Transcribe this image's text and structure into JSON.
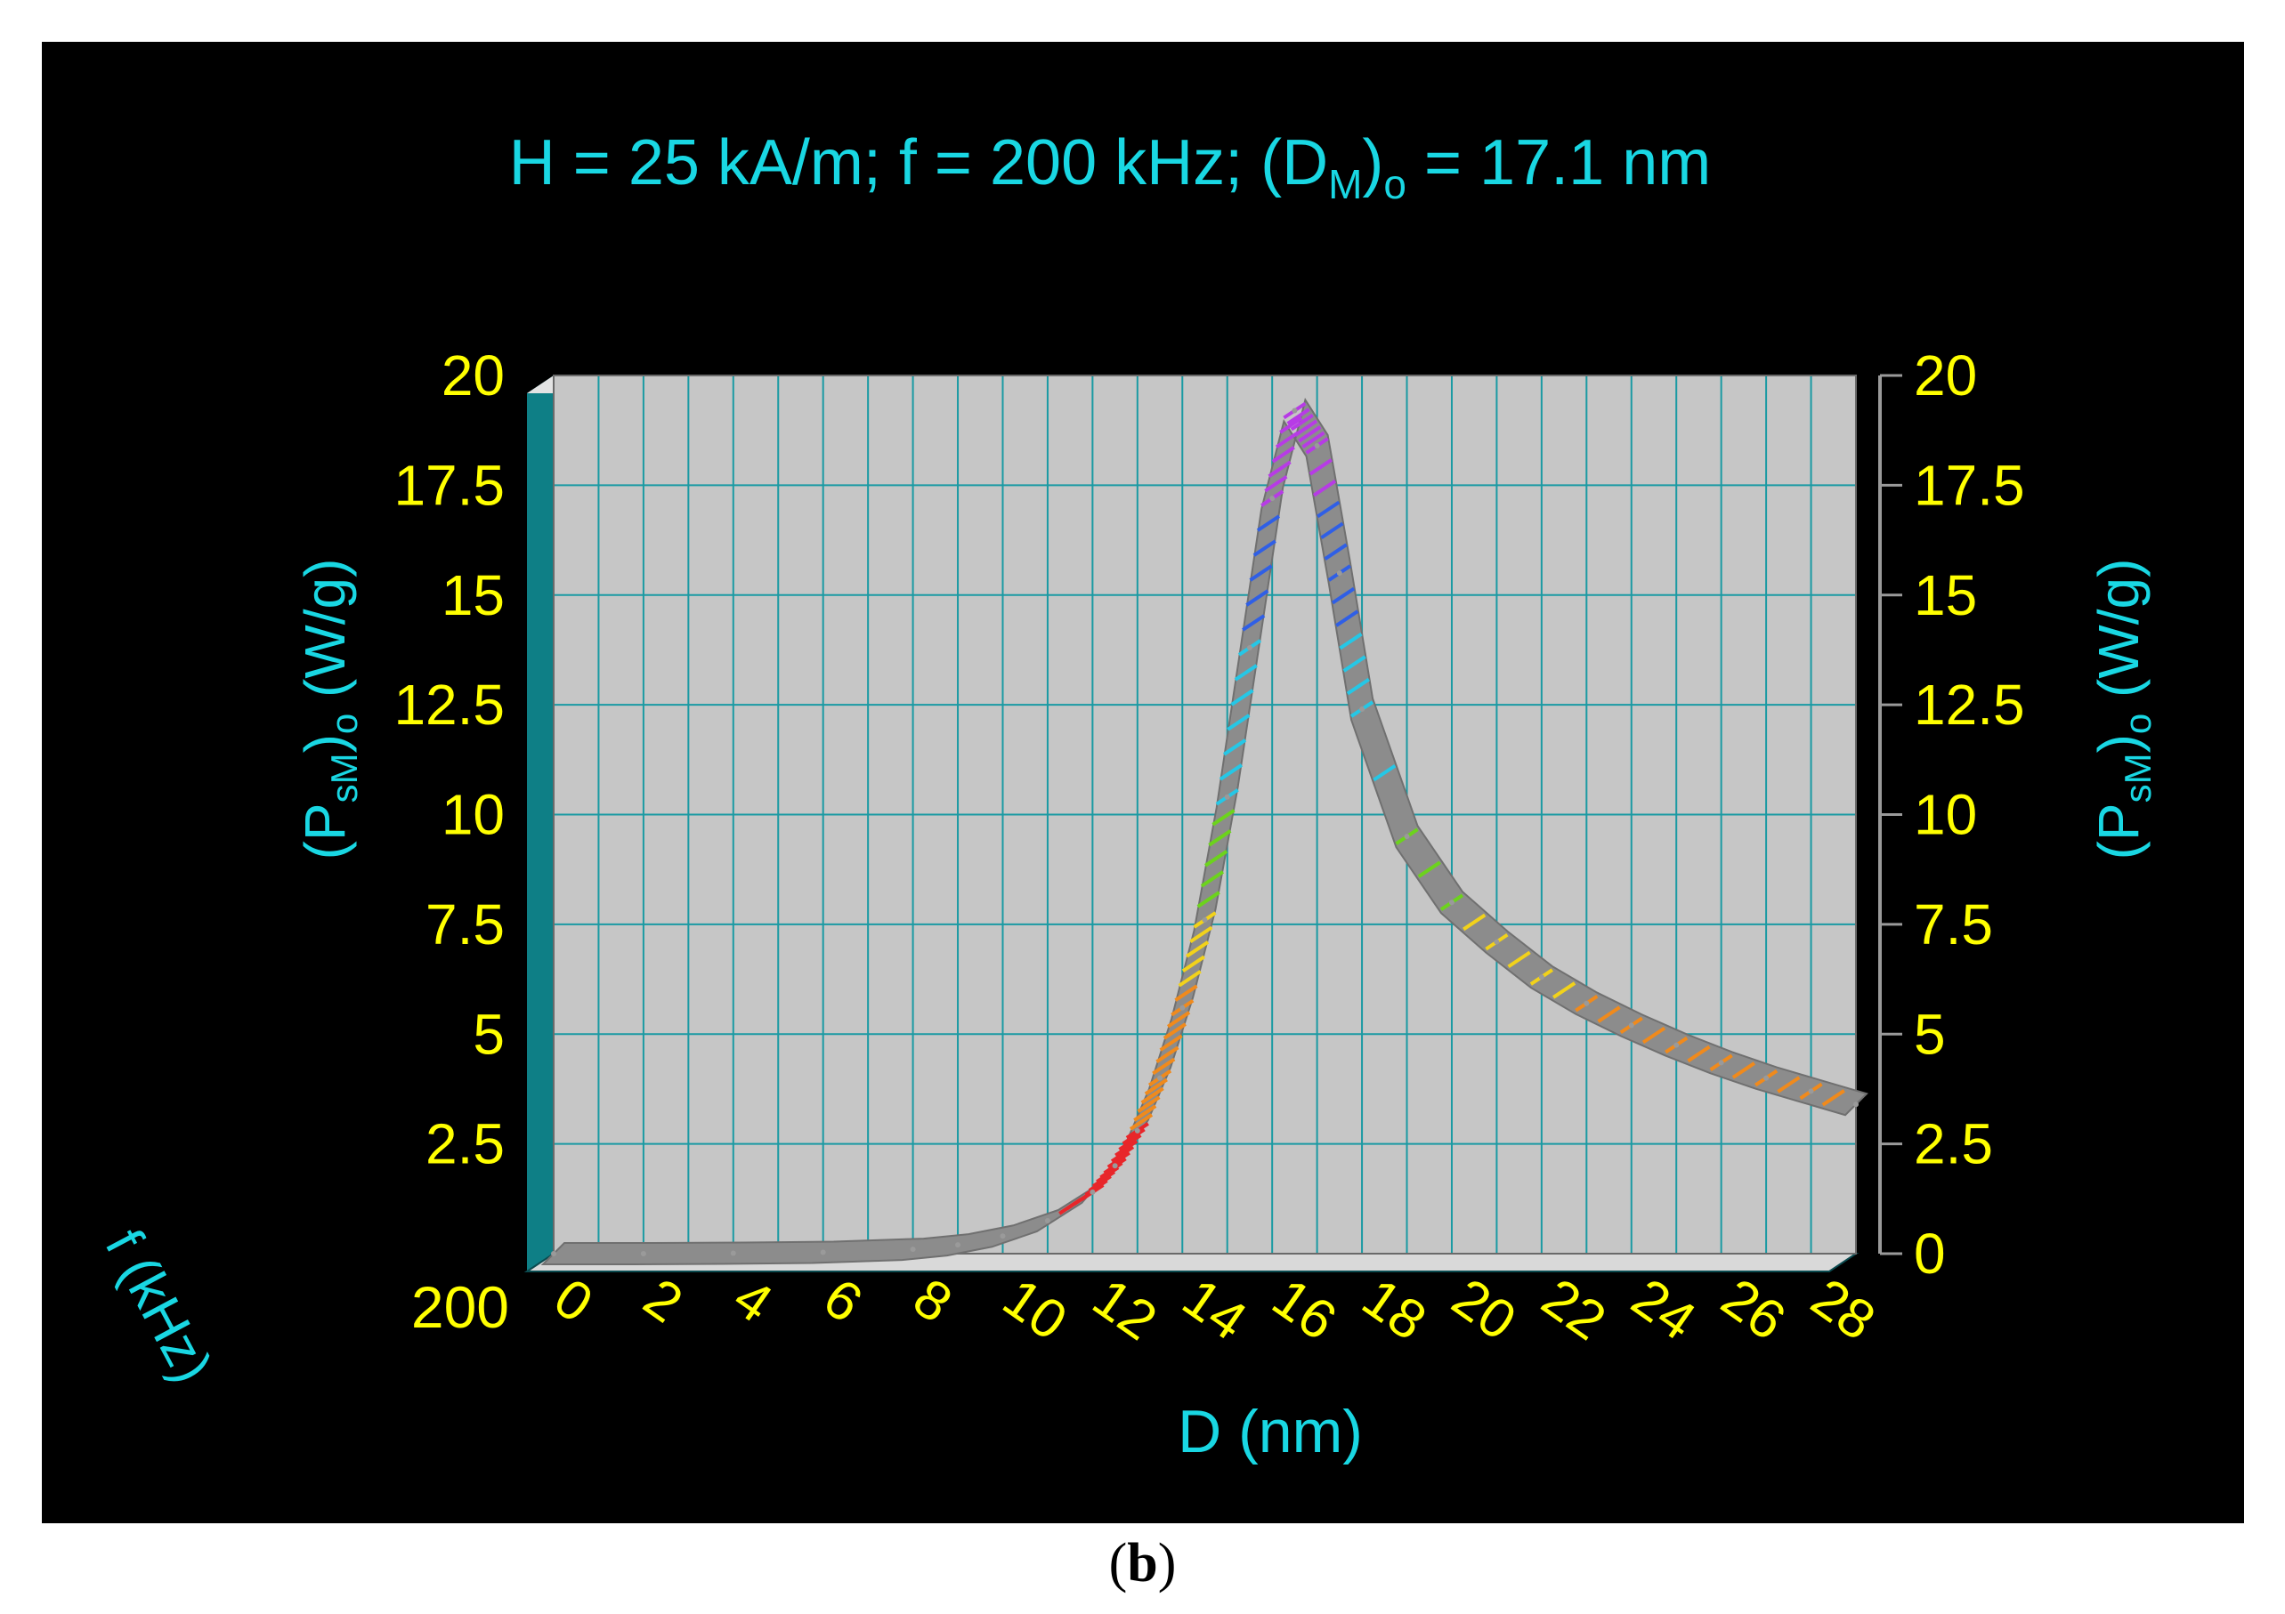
{
  "caption": {
    "open": "(",
    "letter": "b",
    "close": ")"
  },
  "colors": {
    "text_cyan": "#19d7e3",
    "tick_yellow": "#ffff00",
    "panel": "#000000",
    "plot_bg": "#c6c6c6",
    "grid": "#1a9aa3",
    "curve": "#8c8c8c"
  },
  "chart_data": {
    "type": "area",
    "title": {
      "pre": "H = 25 kA/m;  f = 200 kHz;  (D",
      "sub": "M",
      "mid": ")",
      "sub2": "o",
      "post": " = 17.1 nm"
    },
    "xlabel": "D (nm)",
    "ylabel": {
      "pre": "(P",
      "sub": "sM",
      "mid": ")",
      "sub2": "o",
      "post": " (W/g)"
    },
    "zlabel": "f (kHz)",
    "z_tick": "200",
    "xlim": [
      0,
      29
    ],
    "ylim": [
      0,
      20
    ],
    "x_ticks": [
      "0",
      "2",
      "4",
      "6",
      "8",
      "10",
      "12",
      "14",
      "16",
      "18",
      "20",
      "22",
      "24",
      "26",
      "28"
    ],
    "y_ticks_left": [
      "20",
      "17.5",
      "15",
      "12.5",
      "10",
      "7.5",
      "5",
      "2.5"
    ],
    "y_ticks_right": [
      "20",
      "17.5",
      "15",
      "12.5",
      "10",
      "7.5",
      "5",
      "2.5",
      "0"
    ],
    "grid": true,
    "series": [
      {
        "x": [
          0,
          2,
          4,
          6,
          8,
          9,
          10,
          11,
          12,
          12.5,
          13,
          13.5,
          14,
          14.5,
          15,
          15.5,
          16,
          16.5,
          17,
          17.5,
          18,
          19,
          20,
          21,
          22,
          23,
          24,
          25,
          26,
          27,
          28,
          29
        ],
        "y": [
          0.0,
          0.0,
          0.01,
          0.03,
          0.1,
          0.2,
          0.4,
          0.75,
          1.4,
          2.0,
          2.8,
          4.0,
          5.6,
          7.6,
          10.4,
          13.8,
          17.2,
          19.2,
          18.4,
          15.5,
          12.4,
          9.5,
          8.0,
          7.1,
          6.3,
          5.7,
          5.2,
          4.75,
          4.35,
          4.0,
          3.7,
          3.4
        ]
      }
    ]
  }
}
